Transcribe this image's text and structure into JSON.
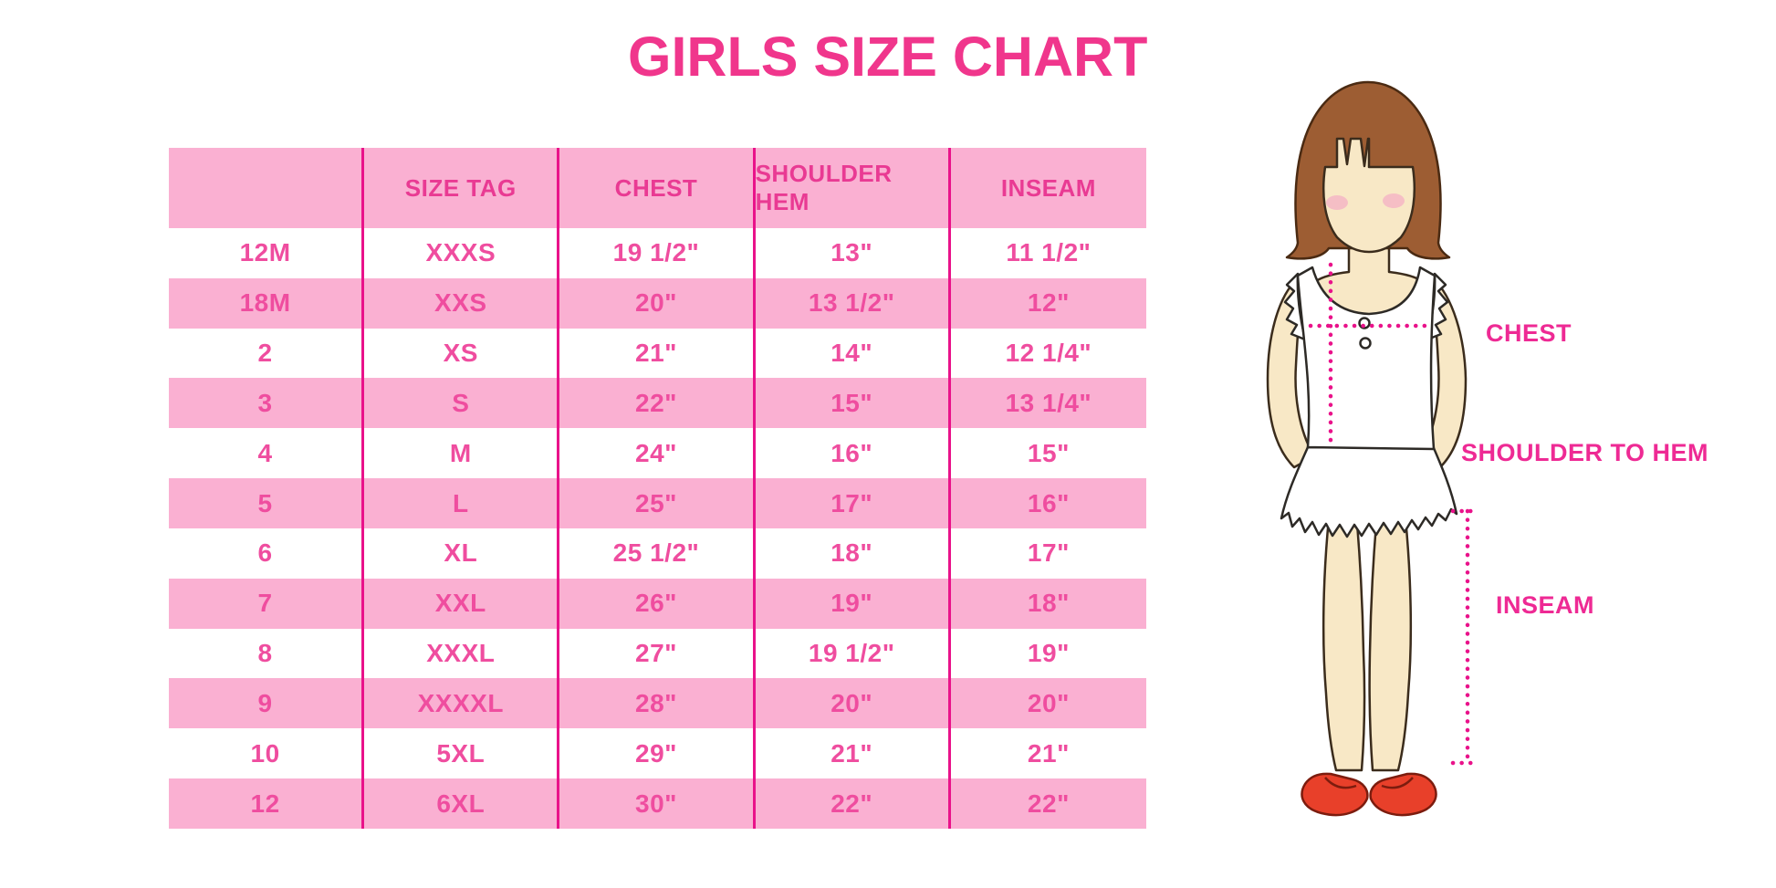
{
  "title": "GIRLS SIZE CHART",
  "colors": {
    "accent": "#f0368c",
    "row_pink": "#fab0d2",
    "line": "#e9128a",
    "cell_text": "#ef4d9f",
    "header_text": "#e93a93",
    "label": "#ee2a94",
    "hair": "#9d5d33",
    "skin": "#f8e8c6",
    "shoe": "#e8402a",
    "blush": "#f4a8c5"
  },
  "annotations": {
    "chest": "CHEST",
    "shoulder_to_hem": "SHOULDER TO HEM",
    "inseam": "INSEAM"
  },
  "chart_data": {
    "type": "table",
    "title": "GIRLS SIZE CHART",
    "columns": [
      "",
      "SIZE TAG",
      "CHEST",
      "SHOULDER HEM",
      "INSEAM"
    ],
    "rows": [
      [
        "12M",
        "XXXS",
        "19 1/2\"",
        "13\"",
        "11 1/2\""
      ],
      [
        "18M",
        "XXS",
        "20\"",
        "13 1/2\"",
        "12\""
      ],
      [
        "2",
        "XS",
        "21\"",
        "14\"",
        "12 1/4\""
      ],
      [
        "3",
        "S",
        "22\"",
        "15\"",
        "13 1/4\""
      ],
      [
        "4",
        "M",
        "24\"",
        "16\"",
        "15\""
      ],
      [
        "5",
        "L",
        "25\"",
        "17\"",
        "16\""
      ],
      [
        "6",
        "XL",
        "25 1/2\"",
        "18\"",
        "17\""
      ],
      [
        "7",
        "XXL",
        "26\"",
        "19\"",
        "18\""
      ],
      [
        "8",
        "XXXL",
        "27\"",
        "19 1/2\"",
        "19\""
      ],
      [
        "9",
        "XXXXL",
        "28\"",
        "20\"",
        "20\""
      ],
      [
        "10",
        "5XL",
        "29\"",
        "21\"",
        "21\""
      ],
      [
        "12",
        "6XL",
        "30\"",
        "22\"",
        "22\""
      ]
    ],
    "layout": {
      "row_striping": [
        "white",
        "pink"
      ],
      "header_background": "pink",
      "column_separators": true,
      "horizontal_gridlines": false
    }
  }
}
